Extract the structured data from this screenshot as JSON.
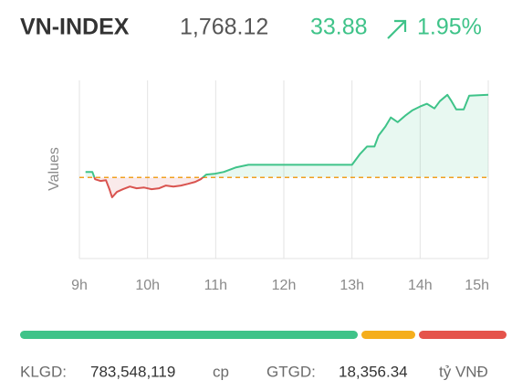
{
  "header": {
    "name": "VN-INDEX",
    "value": "1,768.12",
    "change": "33.88",
    "change_pct": "1.95%"
  },
  "chart_data": {
    "type": "line",
    "y_label": "Values",
    "x": [
      9.09,
      9.19,
      9.23,
      9.31,
      9.39,
      9.44,
      9.48,
      9.55,
      9.64,
      9.74,
      9.84,
      9.95,
      10.06,
      10.17,
      10.27,
      10.38,
      10.49,
      10.59,
      10.7,
      10.78,
      10.86,
      10.98,
      11.12,
      11.29,
      11.48,
      13.0,
      13.12,
      13.22,
      13.33,
      13.39,
      13.49,
      13.57,
      13.67,
      13.78,
      13.89,
      14.0,
      14.1,
      14.21,
      14.29,
      14.4,
      14.46,
      14.53,
      14.64,
      14.72,
      15.0
    ],
    "values": [
      1736.5,
      1736.5,
      1733.5,
      1732.8,
      1733.1,
      1729.4,
      1726.1,
      1728.3,
      1729.4,
      1730.5,
      1729.8,
      1730.1,
      1729.4,
      1729.8,
      1730.9,
      1730.5,
      1730.9,
      1731.6,
      1732.4,
      1733.5,
      1735.4,
      1735.7,
      1736.5,
      1738.3,
      1739.4,
      1739.4,
      1743.9,
      1746.9,
      1746.9,
      1751.4,
      1755.1,
      1758.8,
      1756.9,
      1759.5,
      1761.8,
      1763.3,
      1764.4,
      1762.5,
      1765.5,
      1768.1,
      1765.5,
      1762.1,
      1762.1,
      1767.7,
      1768.12
    ],
    "reference": 1734.24,
    "up_color": "#3fc389",
    "down_color": "#d9534f",
    "reference_color": "#f0a020",
    "xlim": [
      9,
      15
    ],
    "ylim": [
      1701,
      1774
    ],
    "xticks": [
      {
        "value": 9,
        "label": "9h"
      },
      {
        "value": 10,
        "label": "10h"
      },
      {
        "value": 11,
        "label": "11h"
      },
      {
        "value": 12,
        "label": "12h"
      },
      {
        "value": 13,
        "label": "13h"
      },
      {
        "value": 14,
        "label": "14h"
      },
      {
        "value": 15,
        "label": "15h"
      }
    ],
    "grid": true
  },
  "breadth": {
    "values": [
      370,
      59,
      96
    ],
    "colors": [
      "#3fc389",
      "#f5ae1c",
      "#e5534b"
    ]
  },
  "footer": {
    "volume_label": "KLGD:",
    "volume": "783,548,119",
    "volume_unit": "cp",
    "value_label": "GTGD:",
    "value": "18,356.34",
    "value_unit": "tỷ VNĐ"
  }
}
